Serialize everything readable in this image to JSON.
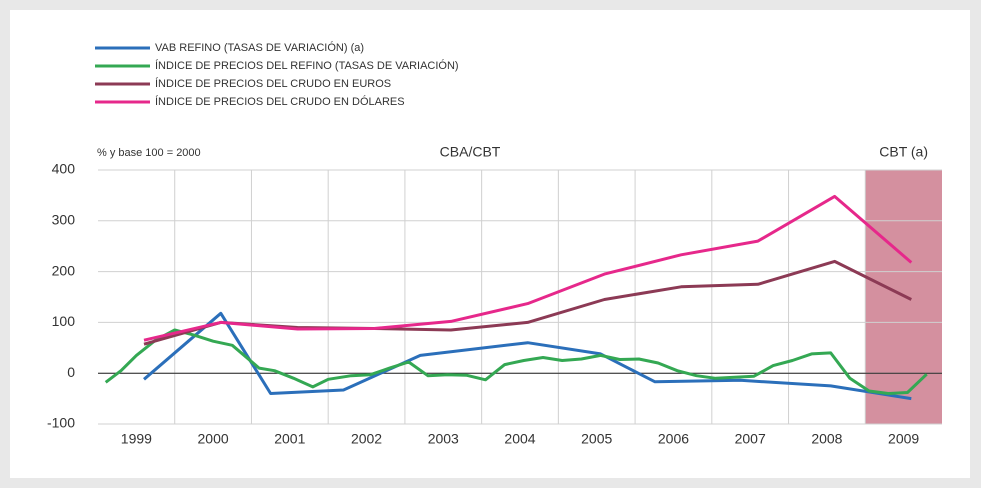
{
  "chart_data": {
    "type": "line",
    "y_label": "% y base 100 = 2000",
    "annotations": [
      "CBA/CBT"
    ],
    "shade": {
      "from": 2009,
      "to": 2010,
      "label": "CBT (a)",
      "color": "#d4909f"
    },
    "xlim": [
      1999,
      2010
    ],
    "xticks": [
      {
        "value": 1999.5,
        "label": "1999"
      },
      {
        "value": 2000.5,
        "label": "2000"
      },
      {
        "value": 2001.5,
        "label": "2001"
      },
      {
        "value": 2002.5,
        "label": "2002"
      },
      {
        "value": 2003.5,
        "label": "2003"
      },
      {
        "value": 2004.5,
        "label": "2004"
      },
      {
        "value": 2005.5,
        "label": "2005"
      },
      {
        "value": 2006.5,
        "label": "2006"
      },
      {
        "value": 2007.5,
        "label": "2007"
      },
      {
        "value": 2008.5,
        "label": "2008"
      },
      {
        "value": 2009.5,
        "label": "2009"
      }
    ],
    "ylim": [
      -100,
      400
    ],
    "yticks": [
      -100,
      0,
      100,
      200,
      300,
      400
    ],
    "grid": true,
    "legend": "top-left",
    "series": [
      {
        "name": "VAB REFINO (TASAS DE VARIACIÓN) (a)",
        "color": "#2b6fba",
        "x": [
          1999.6,
          2000.6,
          2001.25,
          2002.2,
          2003.2,
          2004.6,
          2005.55,
          2006.26,
          2007.37,
          2008.55,
          2009.6
        ],
        "values": [
          -12,
          118,
          -40,
          -33,
          35,
          60,
          38,
          -17,
          -14,
          -25,
          -50
        ]
      },
      {
        "name": "ÍNDICE DE PRECIOS DEL REFINO (TASAS DE VARIACIÓN)",
        "color": "#34a853",
        "x": [
          1999.1,
          1999.3,
          1999.5,
          1999.75,
          2000.0,
          2000.25,
          2000.5,
          2000.75,
          2001.1,
          2001.3,
          2001.55,
          2001.8,
          2002.0,
          2002.3,
          2002.55,
          2002.8,
          2003.05,
          2003.3,
          2003.55,
          2003.8,
          2004.05,
          2004.3,
          2004.55,
          2004.8,
          2005.05,
          2005.3,
          2005.55,
          2005.8,
          2006.05,
          2006.3,
          2006.55,
          2006.8,
          2007.05,
          2007.3,
          2007.55,
          2007.8,
          2008.05,
          2008.3,
          2008.55,
          2008.8,
          2009.05,
          2009.3,
          2009.55,
          2009.8
        ],
        "values": [
          -18,
          5,
          35,
          65,
          85,
          75,
          63,
          55,
          10,
          5,
          -10,
          -27,
          -12,
          -5,
          -3,
          10,
          22,
          -5,
          -3,
          -4,
          -13,
          17,
          25,
          31,
          25,
          28,
          35,
          27,
          28,
          20,
          5,
          -5,
          -10,
          -8,
          -6,
          15,
          25,
          38,
          40,
          -10,
          -35,
          -40,
          -38,
          -2
        ]
      },
      {
        "name": "ÍNDICE DE PRECIOS DEL CRUDO EN EUROS",
        "color": "#8c3a55",
        "x": [
          1999.6,
          2000.6,
          2001.6,
          2002.6,
          2003.6,
          2004.6,
          2005.6,
          2006.6,
          2007.6,
          2008.6,
          2009.6
        ],
        "values": [
          57,
          100,
          90,
          88,
          85,
          100,
          145,
          170,
          175,
          220,
          145
        ]
      },
      {
        "name": "ÍNDICE DE PRECIOS DEL CRUDO EN DÓLARES",
        "color": "#e6288b",
        "x": [
          1999.6,
          2000.6,
          2001.6,
          2002.6,
          2003.6,
          2004.6,
          2005.6,
          2006.6,
          2007.6,
          2008.6,
          2009.6
        ],
        "values": [
          65,
          100,
          87,
          88,
          102,
          137,
          195,
          233,
          260,
          348,
          218
        ]
      }
    ]
  }
}
